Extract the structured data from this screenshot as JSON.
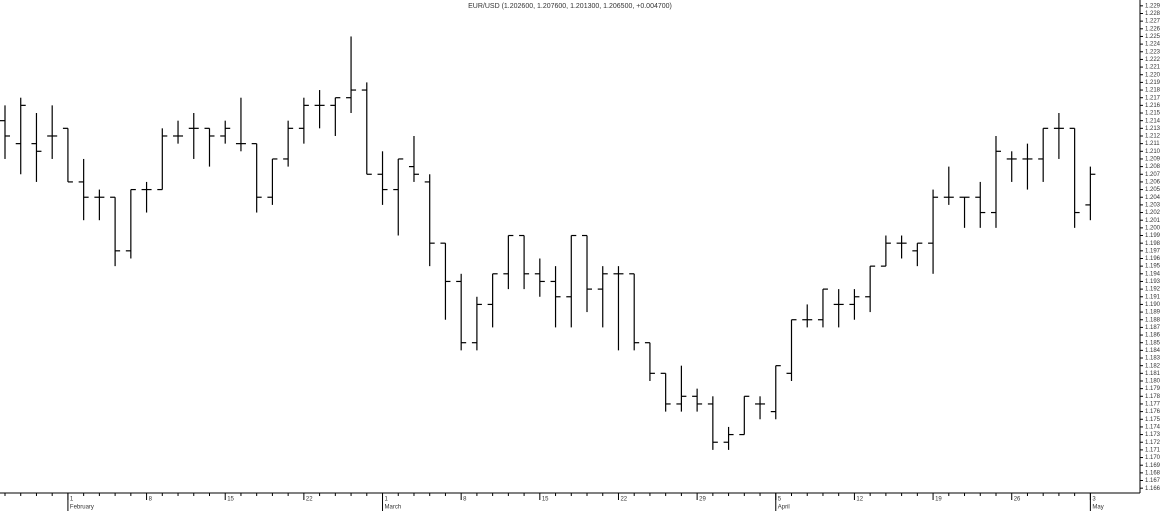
{
  "chart_data": {
    "type": "ohlc",
    "title": "EUR/USD (1.202600, 1.207600, 1.201300, 1.206500, +0.004700)",
    "categories": [
      null,
      null,
      null,
      null,
      "1",
      null,
      null,
      null,
      null,
      "8",
      null,
      null,
      null,
      null,
      "15",
      null,
      null,
      null,
      null,
      "22",
      null,
      null,
      null,
      null,
      "1",
      null,
      null,
      null,
      null,
      "8",
      null,
      null,
      null,
      null,
      "15",
      null,
      null,
      null,
      null,
      "22",
      null,
      null,
      null,
      null,
      "29",
      null,
      null,
      null,
      null,
      "5",
      null,
      null,
      null,
      null,
      "12",
      null,
      null,
      null,
      null,
      "19",
      null,
      null,
      null,
      null,
      "26",
      null,
      null,
      null,
      null,
      "3"
    ],
    "months": [
      null,
      null,
      null,
      null,
      "February",
      null,
      null,
      null,
      null,
      null,
      null,
      null,
      null,
      null,
      null,
      null,
      null,
      null,
      null,
      null,
      null,
      null,
      null,
      null,
      "March",
      null,
      null,
      null,
      null,
      null,
      null,
      null,
      null,
      null,
      null,
      null,
      null,
      null,
      null,
      null,
      null,
      null,
      null,
      null,
      null,
      null,
      null,
      null,
      null,
      "April",
      null,
      null,
      null,
      null,
      null,
      null,
      null,
      null,
      null,
      null,
      null,
      null,
      null,
      null,
      null,
      null,
      null,
      null,
      null,
      "May"
    ],
    "open": [
      1.214,
      1.211,
      1.211,
      1.212,
      1.213,
      1.206,
      1.204,
      1.204,
      1.197,
      1.205,
      1.205,
      1.212,
      1.213,
      1.213,
      1.212,
      1.211,
      1.211,
      1.204,
      1.209,
      1.213,
      1.216,
      1.216,
      1.217,
      1.218,
      1.207,
      1.205,
      1.208,
      1.206,
      1.198,
      1.193,
      1.185,
      1.19,
      1.194,
      1.199,
      1.194,
      1.193,
      1.191,
      1.199,
      1.192,
      1.194,
      1.194,
      1.185,
      1.181,
      1.177,
      1.178,
      1.177,
      1.172,
      1.173,
      1.177,
      1.176,
      1.181,
      1.188,
      1.188,
      1.19,
      1.19,
      1.191,
      1.195,
      1.198,
      1.197,
      1.198,
      1.204,
      1.204,
      1.204,
      1.202,
      1.209,
      1.209,
      1.209,
      1.213,
      1.213,
      1.203
    ],
    "high": [
      1.216,
      1.217,
      1.215,
      1.216,
      1.213,
      1.209,
      1.205,
      1.204,
      1.205,
      1.206,
      1.213,
      1.214,
      1.215,
      1.213,
      1.214,
      1.217,
      1.211,
      1.209,
      1.214,
      1.217,
      1.218,
      1.217,
      1.225,
      1.219,
      1.21,
      1.209,
      1.212,
      1.207,
      1.198,
      1.194,
      1.191,
      1.194,
      1.199,
      1.199,
      1.196,
      1.195,
      1.199,
      1.199,
      1.195,
      1.195,
      1.194,
      1.185,
      1.181,
      1.182,
      1.179,
      1.178,
      1.174,
      1.178,
      1.178,
      1.182,
      1.188,
      1.19,
      1.192,
      1.192,
      1.192,
      1.195,
      1.199,
      1.199,
      1.198,
      1.205,
      1.208,
      1.204,
      1.206,
      1.212,
      1.21,
      1.211,
      1.213,
      1.215,
      1.213,
      1.208
    ],
    "low": [
      1.209,
      1.207,
      1.206,
      1.209,
      1.206,
      1.201,
      1.201,
      1.195,
      1.196,
      1.202,
      1.205,
      1.211,
      1.209,
      1.208,
      1.211,
      1.21,
      1.202,
      1.203,
      1.208,
      1.211,
      1.213,
      1.212,
      1.215,
      1.207,
      1.203,
      1.199,
      1.206,
      1.195,
      1.188,
      1.184,
      1.184,
      1.187,
      1.192,
      1.192,
      1.191,
      1.187,
      1.187,
      1.189,
      1.187,
      1.184,
      1.184,
      1.18,
      1.176,
      1.176,
      1.176,
      1.171,
      1.171,
      1.173,
      1.175,
      1.175,
      1.18,
      1.187,
      1.187,
      1.187,
      1.188,
      1.189,
      1.195,
      1.196,
      1.195,
      1.194,
      1.203,
      1.2,
      1.2,
      1.2,
      1.206,
      1.205,
      1.206,
      1.209,
      1.2,
      1.201
    ],
    "close": [
      1.212,
      1.216,
      1.21,
      1.212,
      1.206,
      1.204,
      1.204,
      1.197,
      1.205,
      1.205,
      1.212,
      1.212,
      1.213,
      1.212,
      1.213,
      1.211,
      1.204,
      1.209,
      1.213,
      1.216,
      1.216,
      1.217,
      1.218,
      1.207,
      1.205,
      1.209,
      1.207,
      1.198,
      1.193,
      1.185,
      1.19,
      1.194,
      1.199,
      1.194,
      1.193,
      1.191,
      1.199,
      1.192,
      1.194,
      1.194,
      1.185,
      1.181,
      1.177,
      1.178,
      1.177,
      1.172,
      1.173,
      1.178,
      1.177,
      1.182,
      1.188,
      1.188,
      1.192,
      1.19,
      1.191,
      1.195,
      1.198,
      1.198,
      1.198,
      1.204,
      1.204,
      1.204,
      1.202,
      1.21,
      1.209,
      1.209,
      1.213,
      1.213,
      1.202,
      1.207
    ],
    "color": "#000000",
    "ylim": [
      1.1655,
      1.2295
    ],
    "yticks": [
      1.166,
      1.167,
      1.168,
      1.169,
      {
        "value": 1.17,
        "label": "1.170"
      },
      1.171,
      1.172,
      1.173,
      1.174,
      1.175,
      1.176,
      1.177,
      1.178,
      1.179,
      {
        "value": 1.18,
        "label": "1.180"
      },
      1.181,
      1.182,
      1.183,
      1.184,
      1.185,
      1.186,
      1.187,
      1.188,
      1.189,
      {
        "value": 1.19,
        "label": "1.190"
      },
      1.191,
      1.192,
      1.193,
      1.194,
      1.195,
      1.196,
      1.197,
      1.198,
      1.199,
      {
        "value": 1.2,
        "label": "1.200"
      },
      1.201,
      1.202,
      1.203,
      1.204,
      1.205,
      1.206,
      1.207,
      1.208,
      1.209,
      {
        "value": 1.21,
        "label": "1.210"
      },
      1.211,
      1.212,
      1.213,
      1.214,
      1.215,
      1.216,
      1.217,
      1.218,
      1.219,
      {
        "value": 1.22,
        "label": "1.220"
      },
      1.221,
      1.222,
      1.223,
      1.224,
      1.225,
      1.226,
      1.227,
      1.228,
      1.229
    ]
  }
}
